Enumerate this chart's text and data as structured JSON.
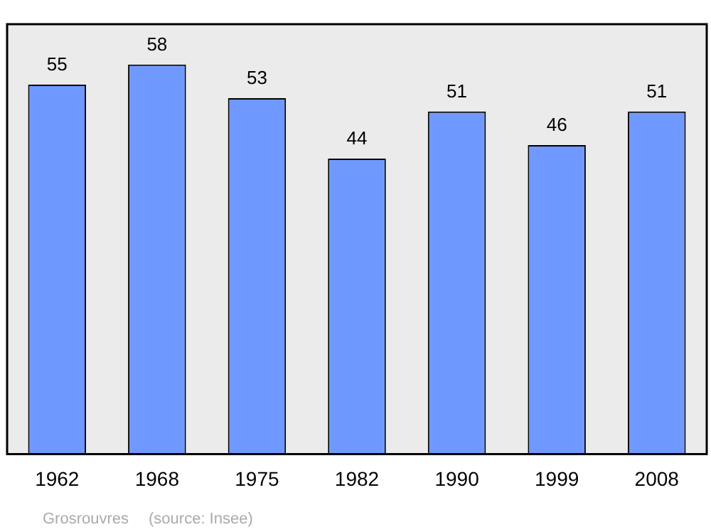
{
  "chart_data": {
    "type": "bar",
    "categories": [
      "1962",
      "1968",
      "1975",
      "1982",
      "1990",
      "1999",
      "2008"
    ],
    "values": [
      55,
      58,
      53,
      44,
      51,
      46,
      51
    ],
    "color": "#7099ff",
    "ylim": [
      0,
      64
    ],
    "tick_labels": "x",
    "data_labels": true,
    "grid": false,
    "legend": false,
    "annotations": [
      "Grosrouvres",
      "(source: Insee)"
    ]
  }
}
